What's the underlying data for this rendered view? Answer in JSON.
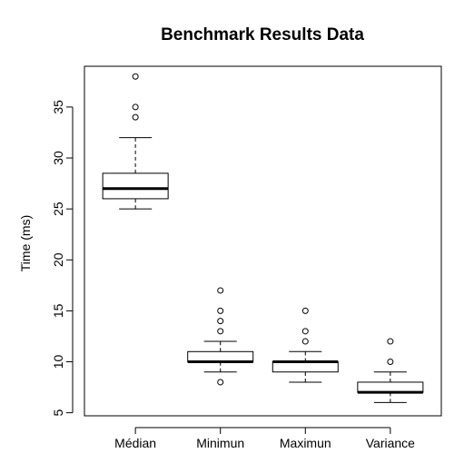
{
  "chart_data": {
    "type": "boxplot",
    "title": "Benchmark Results Data",
    "xlabel": "",
    "ylabel": "Time (ms)",
    "ylim": [
      4.7,
      39
    ],
    "yticks": [
      5,
      10,
      15,
      20,
      25,
      30,
      35
    ],
    "grid": false,
    "legend": "none",
    "categories": [
      "Médian",
      "Minimun",
      "Maximun",
      "Variance"
    ],
    "series": [
      {
        "category": "Médian",
        "whisker_low": 25,
        "q1": 26,
        "median": 27,
        "q3": 28.5,
        "whisker_high": 32,
        "outliers": [
          34,
          35,
          38
        ]
      },
      {
        "category": "Minimun",
        "whisker_low": 9,
        "q1": 10,
        "median": 10,
        "q3": 11,
        "whisker_high": 12,
        "outliers": [
          8,
          13,
          14,
          15,
          17
        ]
      },
      {
        "category": "Maximun",
        "whisker_low": 8,
        "q1": 9,
        "median": 10,
        "q3": 10,
        "whisker_high": 11,
        "outliers": [
          12,
          13,
          15
        ]
      },
      {
        "category": "Variance",
        "whisker_low": 6,
        "q1": 7,
        "median": 7,
        "q3": 8,
        "whisker_high": 9,
        "outliers": [
          10,
          12
        ]
      }
    ]
  }
}
